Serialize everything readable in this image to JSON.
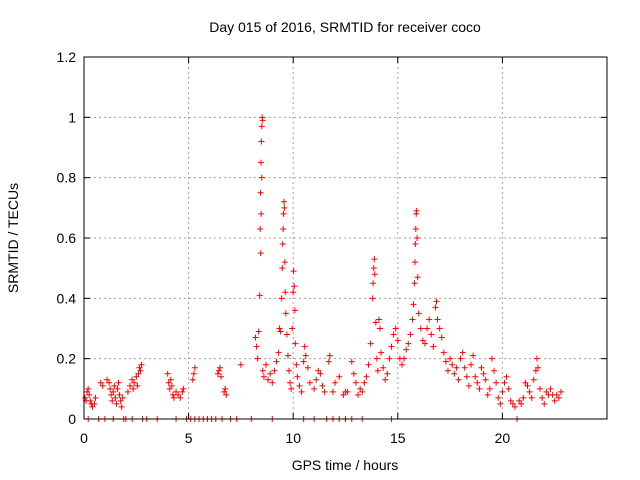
{
  "chart_data": {
    "type": "scatter",
    "title": "Day 015 of 2016, SRMTID for receiver coco",
    "xlabel": "GPS time / hours",
    "ylabel": "SRMTID / TECUs",
    "xlim": [
      0,
      25
    ],
    "ylim": [
      0,
      1.2
    ],
    "grid": true,
    "marker": "+",
    "colors": {
      "series": "#ff0000",
      "grid": "#a0a0a0",
      "axis": "#000000"
    },
    "x_ticks": [
      {
        "value": 0,
        "label": "0"
      },
      {
        "value": 5,
        "label": "5"
      },
      {
        "value": 10,
        "label": "10"
      },
      {
        "value": 15,
        "label": "15"
      },
      {
        "value": 20,
        "label": "20"
      }
    ],
    "y_ticks": [
      {
        "value": 0,
        "label": "0"
      },
      {
        "value": 0.2,
        "label": "0.2"
      },
      {
        "value": 0.4,
        "label": "0.4"
      },
      {
        "value": 0.6,
        "label": "0.6"
      },
      {
        "value": 0.8,
        "label": "0.8"
      },
      {
        "value": 1.0,
        "label": "1"
      },
      {
        "value": 1.2,
        "label": "1.2"
      }
    ],
    "series": [
      {
        "name": "SRMTID",
        "description": "scatter of SRMTID values vs GPS time; points are approximate, with a floor of zero-valued samples",
        "peaks": [
          {
            "x": 8.45,
            "y": 1.0
          },
          {
            "x": 9.5,
            "y": 0.72
          },
          {
            "x": 15.85,
            "y": 0.69
          },
          {
            "x": 13.85,
            "y": 0.53
          },
          {
            "x": 10.0,
            "y": 0.49
          }
        ],
        "points": [
          [
            0.05,
            0.07
          ],
          [
            0.1,
            0.06
          ],
          [
            0.15,
            0.09
          ],
          [
            0.2,
            0.1
          ],
          [
            0.25,
            0.08
          ],
          [
            0.3,
            0.06
          ],
          [
            0.35,
            0.05
          ],
          [
            0.4,
            0.04
          ],
          [
            0.5,
            0.05
          ],
          [
            0.55,
            0.07
          ],
          [
            0.8,
            0.12
          ],
          [
            0.9,
            0.11
          ],
          [
            1.1,
            0.13
          ],
          [
            1.2,
            0.12
          ],
          [
            1.25,
            0.1
          ],
          [
            1.3,
            0.08
          ],
          [
            1.35,
            0.06
          ],
          [
            1.4,
            0.09
          ],
          [
            1.45,
            0.11
          ],
          [
            1.5,
            0.07
          ],
          [
            1.55,
            0.05
          ],
          [
            1.6,
            0.1
          ],
          [
            1.65,
            0.12
          ],
          [
            1.7,
            0.08
          ],
          [
            1.75,
            0.06
          ],
          [
            1.8,
            0.04
          ],
          [
            1.85,
            0.07
          ],
          [
            2.1,
            0.09
          ],
          [
            2.2,
            0.11
          ],
          [
            2.3,
            0.13
          ],
          [
            2.35,
            0.1
          ],
          [
            2.4,
            0.12
          ],
          [
            2.5,
            0.14
          ],
          [
            2.55,
            0.11
          ],
          [
            2.6,
            0.15
          ],
          [
            2.65,
            0.17
          ],
          [
            2.7,
            0.16
          ],
          [
            2.75,
            0.18
          ],
          [
            4.0,
            0.15
          ],
          [
            4.05,
            0.12
          ],
          [
            4.1,
            0.1
          ],
          [
            4.15,
            0.13
          ],
          [
            4.2,
            0.11
          ],
          [
            4.25,
            0.08
          ],
          [
            4.3,
            0.07
          ],
          [
            4.4,
            0.09
          ],
          [
            4.5,
            0.08
          ],
          [
            4.6,
            0.07
          ],
          [
            4.7,
            0.09
          ],
          [
            4.75,
            0.1
          ],
          [
            5.2,
            0.13
          ],
          [
            5.25,
            0.15
          ],
          [
            5.3,
            0.17
          ],
          [
            6.4,
            0.15
          ],
          [
            6.45,
            0.16
          ],
          [
            6.5,
            0.17
          ],
          [
            6.55,
            0.14
          ],
          [
            6.7,
            0.09
          ],
          [
            6.75,
            0.1
          ],
          [
            6.8,
            0.08
          ],
          [
            7.5,
            0.18
          ],
          [
            8.2,
            0.27
          ],
          [
            8.25,
            0.24
          ],
          [
            8.3,
            0.2
          ],
          [
            8.35,
            0.29
          ],
          [
            8.4,
            0.41
          ],
          [
            8.42,
            0.63
          ],
          [
            8.44,
            0.75
          ],
          [
            8.46,
            0.85
          ],
          [
            8.48,
            0.92
          ],
          [
            8.5,
            0.97
          ],
          [
            8.52,
            1.0
          ],
          [
            8.54,
            0.99
          ],
          [
            8.45,
            0.55
          ],
          [
            8.47,
            0.68
          ],
          [
            8.5,
            0.8
          ],
          [
            8.55,
            0.16
          ],
          [
            8.6,
            0.14
          ],
          [
            8.7,
            0.18
          ],
          [
            8.8,
            0.13
          ],
          [
            8.9,
            0.15
          ],
          [
            9.0,
            0.12
          ],
          [
            9.1,
            0.16
          ],
          [
            9.2,
            0.19
          ],
          [
            9.3,
            0.22
          ],
          [
            9.35,
            0.3
          ],
          [
            9.4,
            0.29
          ],
          [
            9.45,
            0.4
          ],
          [
            9.48,
            0.5
          ],
          [
            9.5,
            0.58
          ],
          [
            9.52,
            0.63
          ],
          [
            9.54,
            0.68
          ],
          [
            9.56,
            0.72
          ],
          [
            9.58,
            0.7
          ],
          [
            9.6,
            0.52
          ],
          [
            9.62,
            0.42
          ],
          [
            9.65,
            0.35
          ],
          [
            9.7,
            0.28
          ],
          [
            9.75,
            0.21
          ],
          [
            9.8,
            0.16
          ],
          [
            9.85,
            0.12
          ],
          [
            9.9,
            0.1
          ],
          [
            9.95,
            0.3
          ],
          [
            10.0,
            0.42
          ],
          [
            10.02,
            0.49
          ],
          [
            10.05,
            0.44
          ],
          [
            10.08,
            0.36
          ],
          [
            10.1,
            0.25
          ],
          [
            10.15,
            0.18
          ],
          [
            10.2,
            0.14
          ],
          [
            10.3,
            0.11
          ],
          [
            10.4,
            0.09
          ],
          [
            10.5,
            0.19
          ],
          [
            10.55,
            0.24
          ],
          [
            10.6,
            0.21
          ],
          [
            10.7,
            0.17
          ],
          [
            10.8,
            0.12
          ],
          [
            11.0,
            0.1
          ],
          [
            11.1,
            0.13
          ],
          [
            11.2,
            0.16
          ],
          [
            11.3,
            0.15
          ],
          [
            11.4,
            0.11
          ],
          [
            11.5,
            0.09
          ],
          [
            11.7,
            0.19
          ],
          [
            11.75,
            0.21
          ],
          [
            11.9,
            0.09
          ],
          [
            12.0,
            0.12
          ],
          [
            12.2,
            0.14
          ],
          [
            12.4,
            0.08
          ],
          [
            12.5,
            0.09
          ],
          [
            12.6,
            0.09
          ],
          [
            12.8,
            0.19
          ],
          [
            12.9,
            0.15
          ],
          [
            13.0,
            0.12
          ],
          [
            13.1,
            0.08
          ],
          [
            13.2,
            0.1
          ],
          [
            13.3,
            0.09
          ],
          [
            13.4,
            0.12
          ],
          [
            13.5,
            0.14
          ],
          [
            13.6,
            0.18
          ],
          [
            13.7,
            0.25
          ],
          [
            13.8,
            0.4
          ],
          [
            13.82,
            0.45
          ],
          [
            13.85,
            0.5
          ],
          [
            13.88,
            0.53
          ],
          [
            13.9,
            0.48
          ],
          [
            13.95,
            0.32
          ],
          [
            14.0,
            0.2
          ],
          [
            14.05,
            0.16
          ],
          [
            14.1,
            0.33
          ],
          [
            14.15,
            0.3
          ],
          [
            14.2,
            0.22
          ],
          [
            14.3,
            0.17
          ],
          [
            14.4,
            0.13
          ],
          [
            14.5,
            0.15
          ],
          [
            14.6,
            0.2
          ],
          [
            14.7,
            0.24
          ],
          [
            14.8,
            0.28
          ],
          [
            14.9,
            0.3
          ],
          [
            15.0,
            0.26
          ],
          [
            15.1,
            0.2
          ],
          [
            15.2,
            0.18
          ],
          [
            15.3,
            0.2
          ],
          [
            15.4,
            0.23
          ],
          [
            15.5,
            0.25
          ],
          [
            15.6,
            0.28
          ],
          [
            15.7,
            0.33
          ],
          [
            15.75,
            0.38
          ],
          [
            15.8,
            0.45
          ],
          [
            15.82,
            0.52
          ],
          [
            15.84,
            0.58
          ],
          [
            15.86,
            0.63
          ],
          [
            15.88,
            0.68
          ],
          [
            15.9,
            0.69
          ],
          [
            15.92,
            0.6
          ],
          [
            15.95,
            0.47
          ],
          [
            16.0,
            0.35
          ],
          [
            16.1,
            0.3
          ],
          [
            16.2,
            0.26
          ],
          [
            16.3,
            0.25
          ],
          [
            16.4,
            0.3
          ],
          [
            16.5,
            0.33
          ],
          [
            16.6,
            0.28
          ],
          [
            16.7,
            0.24
          ],
          [
            16.8,
            0.37
          ],
          [
            16.85,
            0.39
          ],
          [
            16.9,
            0.33
          ],
          [
            17.0,
            0.3
          ],
          [
            17.1,
            0.27
          ],
          [
            17.2,
            0.22
          ],
          [
            17.3,
            0.19
          ],
          [
            17.4,
            0.16
          ],
          [
            17.5,
            0.2
          ],
          [
            17.6,
            0.18
          ],
          [
            17.7,
            0.15
          ],
          [
            17.8,
            0.17
          ],
          [
            17.9,
            0.13
          ],
          [
            18.0,
            0.2
          ],
          [
            18.1,
            0.22
          ],
          [
            18.2,
            0.17
          ],
          [
            18.3,
            0.14
          ],
          [
            18.4,
            0.11
          ],
          [
            18.5,
            0.18
          ],
          [
            18.6,
            0.21
          ],
          [
            18.7,
            0.14
          ],
          [
            18.8,
            0.12
          ],
          [
            18.9,
            0.1
          ],
          [
            19.0,
            0.17
          ],
          [
            19.1,
            0.15
          ],
          [
            19.2,
            0.13
          ],
          [
            19.3,
            0.08
          ],
          [
            19.4,
            0.1
          ],
          [
            19.5,
            0.2
          ],
          [
            19.6,
            0.16
          ],
          [
            19.7,
            0.12
          ],
          [
            19.8,
            0.07
          ],
          [
            19.9,
            0.05
          ],
          [
            20.0,
            0.09
          ],
          [
            20.1,
            0.12
          ],
          [
            20.2,
            0.14
          ],
          [
            20.3,
            0.1
          ],
          [
            20.4,
            0.06
          ],
          [
            20.5,
            0.05
          ],
          [
            20.6,
            0.04
          ],
          [
            20.8,
            0.06
          ],
          [
            20.9,
            0.05
          ],
          [
            21.0,
            0.07
          ],
          [
            21.1,
            0.12
          ],
          [
            21.2,
            0.11
          ],
          [
            21.3,
            0.09
          ],
          [
            21.4,
            0.07
          ],
          [
            21.5,
            0.13
          ],
          [
            21.6,
            0.16
          ],
          [
            21.65,
            0.2
          ],
          [
            21.7,
            0.17
          ],
          [
            21.8,
            0.1
          ],
          [
            21.9,
            0.07
          ],
          [
            22.0,
            0.05
          ],
          [
            22.1,
            0.09
          ],
          [
            22.2,
            0.08
          ],
          [
            22.3,
            0.1
          ],
          [
            22.4,
            0.08
          ],
          [
            22.5,
            0.06
          ],
          [
            22.6,
            0.08
          ],
          [
            22.7,
            0.07
          ],
          [
            22.8,
            0.09
          ],
          [
            0.2,
            0.0
          ],
          [
            0.7,
            0.0
          ],
          [
            1.0,
            0.0
          ],
          [
            1.4,
            0.0
          ],
          [
            1.9,
            0.0
          ],
          [
            2.0,
            0.0
          ],
          [
            2.3,
            0.0
          ],
          [
            2.8,
            0.0
          ],
          [
            3.0,
            0.0
          ],
          [
            3.5,
            0.0
          ],
          [
            4.4,
            0.0
          ],
          [
            4.9,
            0.0
          ],
          [
            5.1,
            0.0
          ],
          [
            5.3,
            0.0
          ],
          [
            5.5,
            0.0
          ],
          [
            5.7,
            0.0
          ],
          [
            5.9,
            0.0
          ],
          [
            6.1,
            0.0
          ],
          [
            6.3,
            0.0
          ],
          [
            6.6,
            0.0
          ],
          [
            7.0,
            0.0
          ],
          [
            7.3,
            0.0
          ],
          [
            8.0,
            0.0
          ],
          [
            9.0,
            0.0
          ],
          [
            10.5,
            0.0
          ],
          [
            11.0,
            0.0
          ],
          [
            11.6,
            0.0
          ],
          [
            11.9,
            0.0
          ],
          [
            12.2,
            0.0
          ],
          [
            12.5,
            0.0
          ],
          [
            12.8,
            0.0
          ],
          [
            13.3,
            0.0
          ],
          [
            14.7,
            0.0
          ],
          [
            20.7,
            0.0
          ]
        ]
      }
    ]
  }
}
